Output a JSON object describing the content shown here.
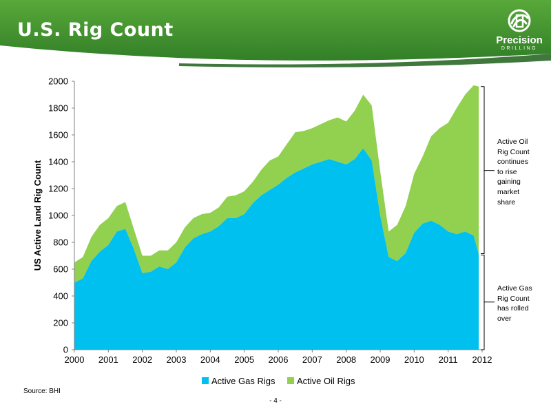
{
  "header": {
    "title": "U.S. Rig Count",
    "logo_text": "Precision",
    "logo_subtext": "DRILLING",
    "band_color": "#3e8f2e"
  },
  "annotations": {
    "oil": [
      "Active Oil",
      "Rig Count",
      "continues",
      "to rise",
      "gaining",
      "market",
      "share"
    ],
    "gas": [
      "Active Gas",
      "Rig Count",
      "has rolled",
      "over"
    ]
  },
  "footer": {
    "source": "Source: BHI",
    "page_number": "- 4 -"
  },
  "chart_data": {
    "type": "area",
    "stacked": true,
    "title": "",
    "xlabel": "",
    "ylabel": "US Active Land Rig Count",
    "xlim": [
      2000,
      2012
    ],
    "ylim": [
      0,
      2000
    ],
    "yticks": [
      0,
      200,
      400,
      600,
      800,
      1000,
      1200,
      1400,
      1600,
      1800,
      2000
    ],
    "xticks": [
      2000,
      2001,
      2002,
      2003,
      2004,
      2005,
      2006,
      2007,
      2008,
      2009,
      2010,
      2011,
      2012
    ],
    "grid": false,
    "legend_position": "bottom",
    "x": [
      2000.0,
      2000.25,
      2000.5,
      2000.75,
      2001.0,
      2001.25,
      2001.5,
      2001.75,
      2002.0,
      2002.25,
      2002.5,
      2002.75,
      2003.0,
      2003.25,
      2003.5,
      2003.75,
      2004.0,
      2004.25,
      2004.5,
      2004.75,
      2005.0,
      2005.25,
      2005.5,
      2005.75,
      2006.0,
      2006.25,
      2006.5,
      2006.75,
      2007.0,
      2007.25,
      2007.5,
      2007.75,
      2008.0,
      2008.25,
      2008.5,
      2008.75,
      2009.0,
      2009.25,
      2009.5,
      2009.75,
      2010.0,
      2010.25,
      2010.5,
      2010.75,
      2011.0,
      2011.25,
      2011.5,
      2011.75,
      2011.9
    ],
    "series": [
      {
        "name": "Active Gas Rigs",
        "color": "#00c0f0",
        "values": [
          500,
          530,
          660,
          730,
          780,
          880,
          900,
          750,
          570,
          580,
          620,
          600,
          650,
          760,
          830,
          860,
          880,
          920,
          980,
          980,
          1010,
          1090,
          1150,
          1190,
          1230,
          1280,
          1320,
          1350,
          1380,
          1400,
          1420,
          1400,
          1380,
          1420,
          1500,
          1410,
          1000,
          690,
          660,
          720,
          870,
          940,
          960,
          930,
          880,
          860,
          880,
          850,
          710
        ]
      },
      {
        "name": "Active Oil Rigs",
        "color": "#92d050",
        "values": [
          150,
          160,
          180,
          200,
          200,
          190,
          200,
          150,
          130,
          120,
          120,
          140,
          150,
          150,
          150,
          150,
          140,
          140,
          160,
          170,
          170,
          160,
          190,
          220,
          210,
          250,
          300,
          280,
          270,
          280,
          290,
          330,
          320,
          360,
          400,
          410,
          330,
          190,
          270,
          350,
          440,
          500,
          630,
          720,
          810,
          940,
          1020,
          1120,
          1250
        ]
      }
    ]
  }
}
